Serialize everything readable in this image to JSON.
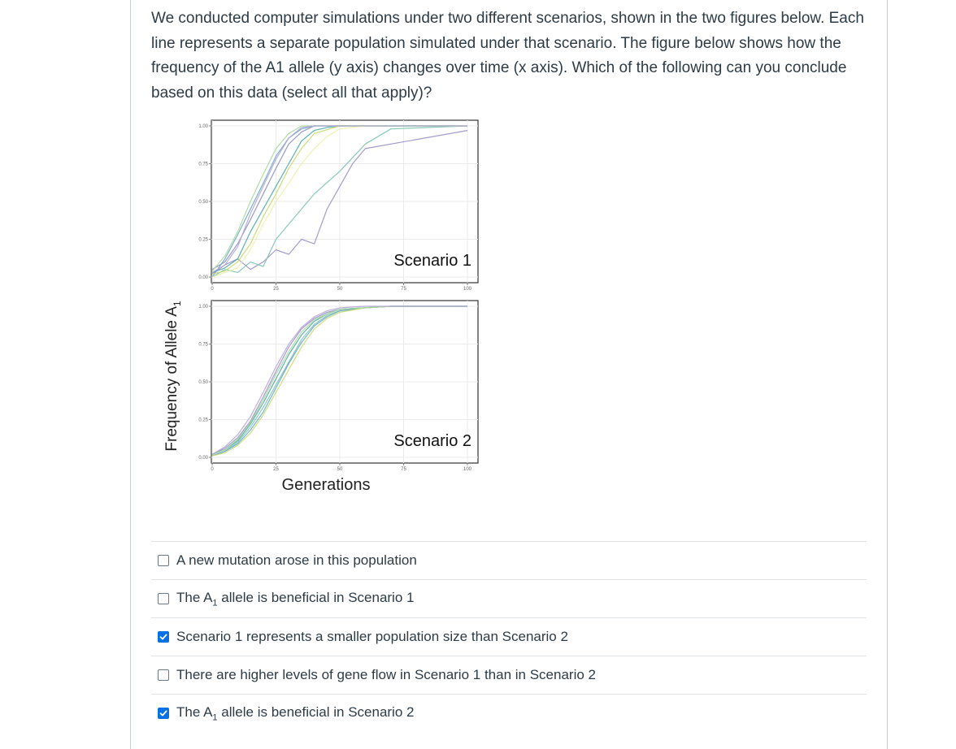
{
  "question_text": "We conducted computer simulations under two different scenarios, shown in the two figures below. Each line represents a separate population simulated under that scenario. The figure below shows how the frequency of the A1 allele (y axis) changes over time (x axis). Which of the following can you conclude based on this data (select all that apply)?",
  "figure": {
    "ylabel": "Frequency of Allele A",
    "ylabel_sub": "1",
    "xlabel": "Generations"
  },
  "chart_data": [
    {
      "type": "line",
      "title": "Scenario 1",
      "xlabel": "Generations",
      "ylabel": "Frequency of Allele A1",
      "xlim": [
        0,
        100
      ],
      "ylim": [
        0,
        1
      ],
      "x_ticks": [
        "0",
        "25",
        "50",
        "75",
        "100"
      ],
      "y_ticks": [
        "0.00",
        "0.25",
        "0.50",
        "0.75",
        "1.00"
      ],
      "grid": true,
      "series": [
        {
          "color": "#9b8fc6",
          "x": [
            0,
            5,
            10,
            15,
            20,
            25,
            30,
            35,
            40,
            45,
            50,
            55,
            60,
            100
          ],
          "y": [
            0.02,
            0.08,
            0.12,
            0.05,
            0.1,
            0.18,
            0.15,
            0.25,
            0.22,
            0.45,
            0.6,
            0.75,
            0.85,
            0.97
          ]
        },
        {
          "color": "#7bc3b3",
          "x": [
            0,
            5,
            10,
            15,
            20,
            25,
            30,
            40,
            50,
            60,
            70,
            100
          ],
          "y": [
            0.0,
            0.05,
            0.03,
            0.1,
            0.07,
            0.25,
            0.35,
            0.55,
            0.7,
            0.88,
            0.98,
            1.0
          ]
        },
        {
          "color": "#4aa9a6",
          "x": [
            0,
            5,
            10,
            15,
            20,
            25,
            30,
            35,
            40,
            45,
            50,
            100
          ],
          "y": [
            0.03,
            0.06,
            0.12,
            0.3,
            0.45,
            0.6,
            0.75,
            0.9,
            0.97,
            0.99,
            1.0,
            1.0
          ]
        },
        {
          "color": "#8d8fc0",
          "x": [
            0,
            5,
            10,
            15,
            20,
            25,
            30,
            35,
            40,
            45,
            100
          ],
          "y": [
            0.05,
            0.1,
            0.22,
            0.38,
            0.55,
            0.72,
            0.88,
            0.96,
            1.0,
            1.0,
            1.0
          ]
        },
        {
          "color": "#6aa6c6",
          "x": [
            0,
            5,
            10,
            15,
            20,
            25,
            30,
            35,
            40,
            100
          ],
          "y": [
            0.0,
            0.12,
            0.28,
            0.45,
            0.62,
            0.8,
            0.92,
            0.98,
            1.0,
            1.0
          ]
        },
        {
          "color": "#c5d96a",
          "x": [
            0,
            5,
            10,
            15,
            20,
            25,
            30,
            35,
            40,
            50,
            100
          ],
          "y": [
            0.02,
            0.04,
            0.1,
            0.22,
            0.4,
            0.55,
            0.72,
            0.85,
            0.95,
            1.0,
            1.0
          ]
        },
        {
          "color": "#eef0a8",
          "x": [
            0,
            5,
            10,
            15,
            20,
            25,
            30,
            35,
            40,
            45,
            50,
            60,
            100
          ],
          "y": [
            0.0,
            0.03,
            0.06,
            0.18,
            0.35,
            0.5,
            0.62,
            0.75,
            0.85,
            0.93,
            0.98,
            1.0,
            1.0
          ]
        },
        {
          "color": "#a6d89a",
          "x": [
            0,
            5,
            10,
            15,
            20,
            25,
            30,
            35,
            100
          ],
          "y": [
            0.04,
            0.14,
            0.3,
            0.5,
            0.68,
            0.85,
            0.95,
            1.0,
            1.0
          ]
        },
        {
          "color": "#b5a5d8",
          "x": [
            0,
            5,
            10,
            15,
            20,
            25,
            30,
            35,
            40,
            100
          ],
          "y": [
            0.03,
            0.08,
            0.2,
            0.42,
            0.6,
            0.78,
            0.92,
            0.99,
            1.0,
            1.0
          ]
        }
      ]
    },
    {
      "type": "line",
      "title": "Scenario 2",
      "xlabel": "Generations",
      "ylabel": "Frequency of Allele A1",
      "xlim": [
        0,
        100
      ],
      "ylim": [
        0,
        1
      ],
      "x_ticks": [
        "0",
        "25",
        "50",
        "75",
        "100"
      ],
      "y_ticks": [
        "0.00",
        "0.25",
        "0.50",
        "0.75",
        "1.00"
      ],
      "grid": true,
      "series": [
        {
          "color": "#9b8fc6",
          "x": [
            0,
            5,
            10,
            15,
            20,
            25,
            30,
            35,
            40,
            45,
            50,
            60,
            70,
            100
          ],
          "y": [
            0.02,
            0.06,
            0.13,
            0.24,
            0.4,
            0.57,
            0.73,
            0.85,
            0.92,
            0.96,
            0.98,
            0.99,
            1.0,
            1.0
          ]
        },
        {
          "color": "#7bc3b3",
          "x": [
            0,
            5,
            10,
            15,
            20,
            25,
            30,
            35,
            40,
            45,
            50,
            60,
            70,
            100
          ],
          "y": [
            0.01,
            0.04,
            0.1,
            0.2,
            0.33,
            0.48,
            0.63,
            0.78,
            0.88,
            0.94,
            0.97,
            0.99,
            1.0,
            1.0
          ]
        },
        {
          "color": "#4aa9a6",
          "x": [
            0,
            5,
            10,
            15,
            20,
            25,
            30,
            35,
            40,
            45,
            50,
            60,
            70,
            100
          ],
          "y": [
            0.02,
            0.05,
            0.11,
            0.22,
            0.36,
            0.52,
            0.68,
            0.81,
            0.9,
            0.95,
            0.98,
            0.99,
            1.0,
            1.0
          ]
        },
        {
          "color": "#6aa6c6",
          "x": [
            0,
            5,
            10,
            15,
            20,
            25,
            30,
            35,
            40,
            45,
            50,
            60,
            70,
            100
          ],
          "y": [
            0.01,
            0.04,
            0.09,
            0.18,
            0.3,
            0.46,
            0.62,
            0.76,
            0.87,
            0.93,
            0.97,
            0.99,
            1.0,
            1.0
          ]
        },
        {
          "color": "#c5d96a",
          "x": [
            0,
            5,
            10,
            15,
            20,
            25,
            30,
            35,
            40,
            45,
            50,
            60,
            70,
            100
          ],
          "y": [
            0.01,
            0.03,
            0.08,
            0.16,
            0.28,
            0.43,
            0.58,
            0.73,
            0.85,
            0.92,
            0.96,
            0.99,
            1.0,
            1.0
          ]
        },
        {
          "color": "#a6d89a",
          "x": [
            0,
            5,
            10,
            15,
            20,
            25,
            30,
            35,
            40,
            45,
            50,
            60,
            70,
            100
          ],
          "y": [
            0.02,
            0.05,
            0.12,
            0.23,
            0.38,
            0.55,
            0.7,
            0.83,
            0.91,
            0.95,
            0.98,
            0.99,
            1.0,
            1.0
          ]
        },
        {
          "color": "#b5a5d8",
          "x": [
            0,
            5,
            10,
            15,
            20,
            25,
            30,
            35,
            40,
            45,
            50,
            60,
            70,
            100
          ],
          "y": [
            0.02,
            0.07,
            0.15,
            0.27,
            0.43,
            0.6,
            0.75,
            0.86,
            0.93,
            0.97,
            0.99,
            1.0,
            1.0,
            1.0
          ]
        }
      ]
    }
  ],
  "answers": [
    {
      "text": "A new mutation arose in this population",
      "checked": false
    },
    {
      "pre": "The A",
      "sub": "1",
      "post": " allele is beneficial in Scenario 1",
      "checked": false
    },
    {
      "text": "Scenario 1 represents a smaller population size than Scenario 2",
      "checked": true
    },
    {
      "text": "There are higher levels of gene flow in Scenario 1 than in Scenario 2",
      "checked": false
    },
    {
      "pre": "The A",
      "sub": "1",
      "post": " allele is beneficial in Scenario 2",
      "checked": true
    }
  ],
  "colors": {
    "checkbox_checked": "#0770e3",
    "text": "#2d3b45"
  }
}
